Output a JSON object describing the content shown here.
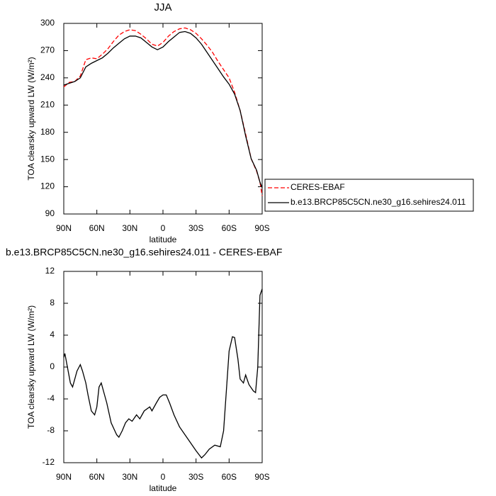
{
  "chart_data": [
    {
      "type": "line",
      "title": "JJA",
      "xlabel": "latitude",
      "ylabel": "TOA clearsky upward LW (W/m²)",
      "x": [
        90,
        85,
        80,
        75,
        70,
        65,
        60,
        55,
        50,
        45,
        40,
        35,
        30,
        25,
        20,
        15,
        10,
        5,
        0,
        -5,
        -10,
        -15,
        -20,
        -25,
        -30,
        -35,
        -40,
        -45,
        -50,
        -55,
        -60,
        -65,
        -70,
        -75,
        -80,
        -85,
        -88,
        -90
      ],
      "series": [
        {
          "name": "CERES-EBAF",
          "color": "#ff0000",
          "linestyle": "dashed",
          "values": [
            230,
            235,
            236,
            242,
            260,
            262,
            261,
            266,
            272,
            280,
            287,
            291,
            293,
            292,
            288,
            283,
            277,
            275,
            279,
            286,
            291,
            294,
            295,
            293,
            289,
            283,
            276,
            268,
            258,
            249,
            240,
            224,
            204,
            178,
            151,
            137,
            125,
            110
          ]
        },
        {
          "name": "b.e13.BRCP85C5CN.ne30_g16.sehires24.011",
          "color": "#000000",
          "linestyle": "solid",
          "values": [
            232,
            234,
            236,
            240,
            252,
            256,
            259,
            262,
            267,
            273,
            278,
            283,
            286,
            286,
            284,
            279,
            274,
            271,
            274,
            280,
            285,
            290,
            291,
            289,
            284,
            277,
            268,
            259,
            250,
            241,
            233,
            222,
            204,
            176,
            151,
            138,
            125,
            119
          ]
        }
      ],
      "xlim": [
        90,
        -90
      ],
      "xticks": [
        {
          "value": 90,
          "label": "90N"
        },
        {
          "value": 60,
          "label": "60N"
        },
        {
          "value": 30,
          "label": "30N"
        },
        0,
        {
          "value": -30,
          "label": "30S"
        },
        {
          "value": -60,
          "label": "60S"
        },
        {
          "value": -90,
          "label": "90S"
        }
      ],
      "ylim": [
        90,
        300
      ],
      "yticks": [
        90,
        120,
        150,
        180,
        210,
        240,
        270,
        300
      ],
      "legend": "right"
    },
    {
      "type": "line",
      "title": "b.e13.BRCP85C5CN.ne30_g16.sehires24.011 - CERES-EBAF",
      "xlabel": "latitude",
      "ylabel": "TOA clearsky upward LW (W/m²)",
      "x": [
        90,
        89,
        84,
        82,
        78,
        75,
        73,
        71,
        70,
        68,
        65,
        62,
        60,
        58,
        56,
        54,
        51,
        47,
        42,
        40,
        37,
        34,
        31,
        28,
        24,
        21,
        17,
        12,
        10,
        6,
        3,
        0,
        -3,
        -6,
        -10,
        -15,
        -20,
        -25,
        -30,
        -35,
        -38,
        -42,
        -47,
        -52,
        -55,
        -58,
        -60,
        -63,
        -65,
        -68,
        -70,
        -73,
        -75,
        -78,
        -82,
        -84,
        -86,
        -88,
        -90
      ],
      "values": [
        1.2,
        1.7,
        -2,
        -2.5,
        -0.5,
        0.3,
        -0.5,
        -1.5,
        -2,
        -3.5,
        -5.5,
        -6,
        -5,
        -2.5,
        -2,
        -3,
        -4.5,
        -7,
        -8.5,
        -8.8,
        -8,
        -7,
        -6.5,
        -6.8,
        -6,
        -6.5,
        -5.5,
        -5,
        -5.5,
        -4.5,
        -3.8,
        -3.5,
        -3.5,
        -4.5,
        -6,
        -7.5,
        -8.5,
        -9.5,
        -10.5,
        -11.4,
        -11,
        -10.3,
        -9.8,
        -10,
        -8,
        -2,
        2,
        3.8,
        3.7,
        1,
        -1.5,
        -2,
        -1,
        -2.2,
        -3,
        -3.2,
        0,
        9,
        9.8
      ],
      "color": "#000000",
      "xlim": [
        90,
        -90
      ],
      "xticks": [
        {
          "value": 90,
          "label": "90N"
        },
        {
          "value": 60,
          "label": "60N"
        },
        {
          "value": 30,
          "label": "30N"
        },
        0,
        {
          "value": -30,
          "label": "30S"
        },
        {
          "value": -60,
          "label": "60S"
        },
        {
          "value": -90,
          "label": "90S"
        }
      ],
      "ylim": [
        -12,
        12
      ],
      "yticks": [
        -12,
        -8,
        -4,
        0,
        4,
        8,
        12
      ]
    }
  ]
}
